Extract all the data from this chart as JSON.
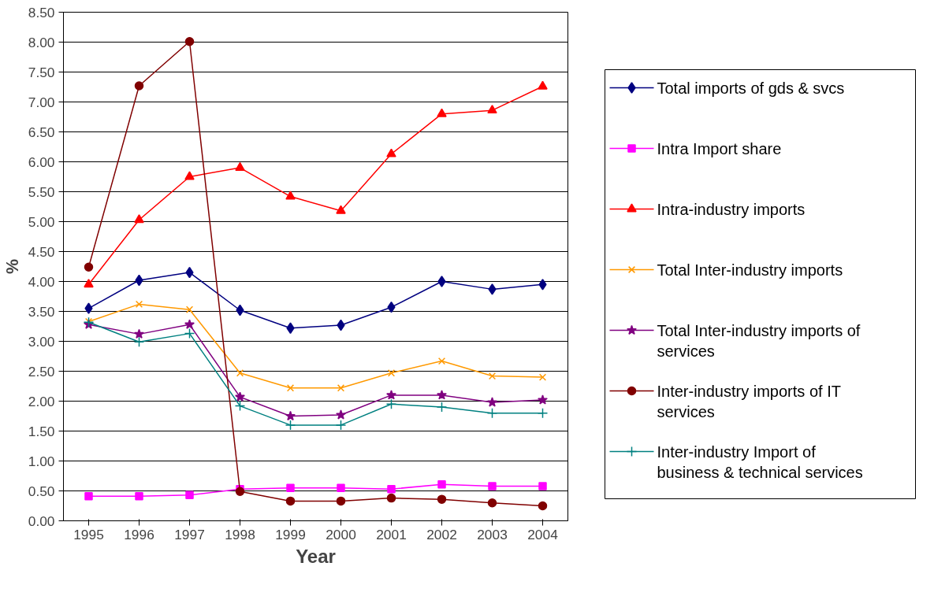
{
  "chart_data": {
    "type": "line",
    "xlabel": "Year",
    "ylabel": "%",
    "categories": [
      "1995",
      "1996",
      "1997",
      "1998",
      "1999",
      "2000",
      "2001",
      "2002",
      "2003",
      "2004"
    ],
    "ylim": [
      0,
      8.5
    ],
    "yticks": [
      {
        "value": 0,
        "label": "0.00"
      },
      {
        "value": 0.5,
        "label": "0.50"
      },
      {
        "value": 1,
        "label": "1.00"
      },
      {
        "value": 1.5,
        "label": "1.50"
      },
      {
        "value": 2,
        "label": "2.00"
      },
      {
        "value": 2.5,
        "label": "2.50"
      },
      {
        "value": 3,
        "label": "3.00"
      },
      {
        "value": 3.5,
        "label": "3.50"
      },
      {
        "value": 4,
        "label": "4.00"
      },
      {
        "value": 4.5,
        "label": "4.50"
      },
      {
        "value": 5,
        "label": "5.00"
      },
      {
        "value": 5.5,
        "label": "5.50"
      },
      {
        "value": 6,
        "label": "6.00"
      },
      {
        "value": 6.5,
        "label": "6.50"
      },
      {
        "value": 7,
        "label": "7.00"
      },
      {
        "value": 7.5,
        "label": "7.50"
      },
      {
        "value": 8,
        "label": "8.00"
      },
      {
        "value": 8.5,
        "label": "8.50"
      }
    ],
    "grid": "y",
    "legend": "right",
    "series": [
      {
        "name": "Total imports of gds & svcs",
        "color": "#000080",
        "marker": "diamond",
        "values": [
          3.55,
          4.02,
          4.15,
          3.52,
          3.22,
          3.27,
          3.57,
          4.0,
          3.87,
          3.95
        ]
      },
      {
        "name": "Intra Import share",
        "color": "#ff00ff",
        "marker": "square",
        "values": [
          0.41,
          0.41,
          0.43,
          0.53,
          0.55,
          0.55,
          0.53,
          0.61,
          0.58,
          0.58
        ]
      },
      {
        "name": "Intra-industry imports",
        "color": "#ff0000",
        "marker": "triangle",
        "values": [
          3.95,
          5.03,
          5.75,
          5.9,
          5.42,
          5.18,
          6.13,
          6.8,
          6.86,
          7.26
        ]
      },
      {
        "name": "Total Inter-industry imports",
        "color": "#ff9900",
        "marker": "x",
        "values": [
          3.33,
          3.62,
          3.53,
          2.47,
          2.22,
          2.22,
          2.47,
          2.67,
          2.42,
          2.4
        ]
      },
      {
        "name": "Total Inter-industry imports of services",
        "color": "#800080",
        "marker": "star",
        "values": [
          3.28,
          3.12,
          3.28,
          2.07,
          1.75,
          1.77,
          2.1,
          2.1,
          1.98,
          2.02
        ]
      },
      {
        "name": "Inter-industry imports of IT services",
        "color": "#800000",
        "marker": "circle",
        "values": [
          4.24,
          7.27,
          8.01,
          0.49,
          0.33,
          0.33,
          0.38,
          0.36,
          0.3,
          0.25
        ]
      },
      {
        "name": "Inter-industry Import of business & technical services",
        "color": "#008080",
        "marker": "cross",
        "values": [
          3.32,
          2.99,
          3.13,
          1.92,
          1.6,
          1.6,
          1.95,
          1.9,
          1.8,
          1.8
        ]
      }
    ]
  }
}
